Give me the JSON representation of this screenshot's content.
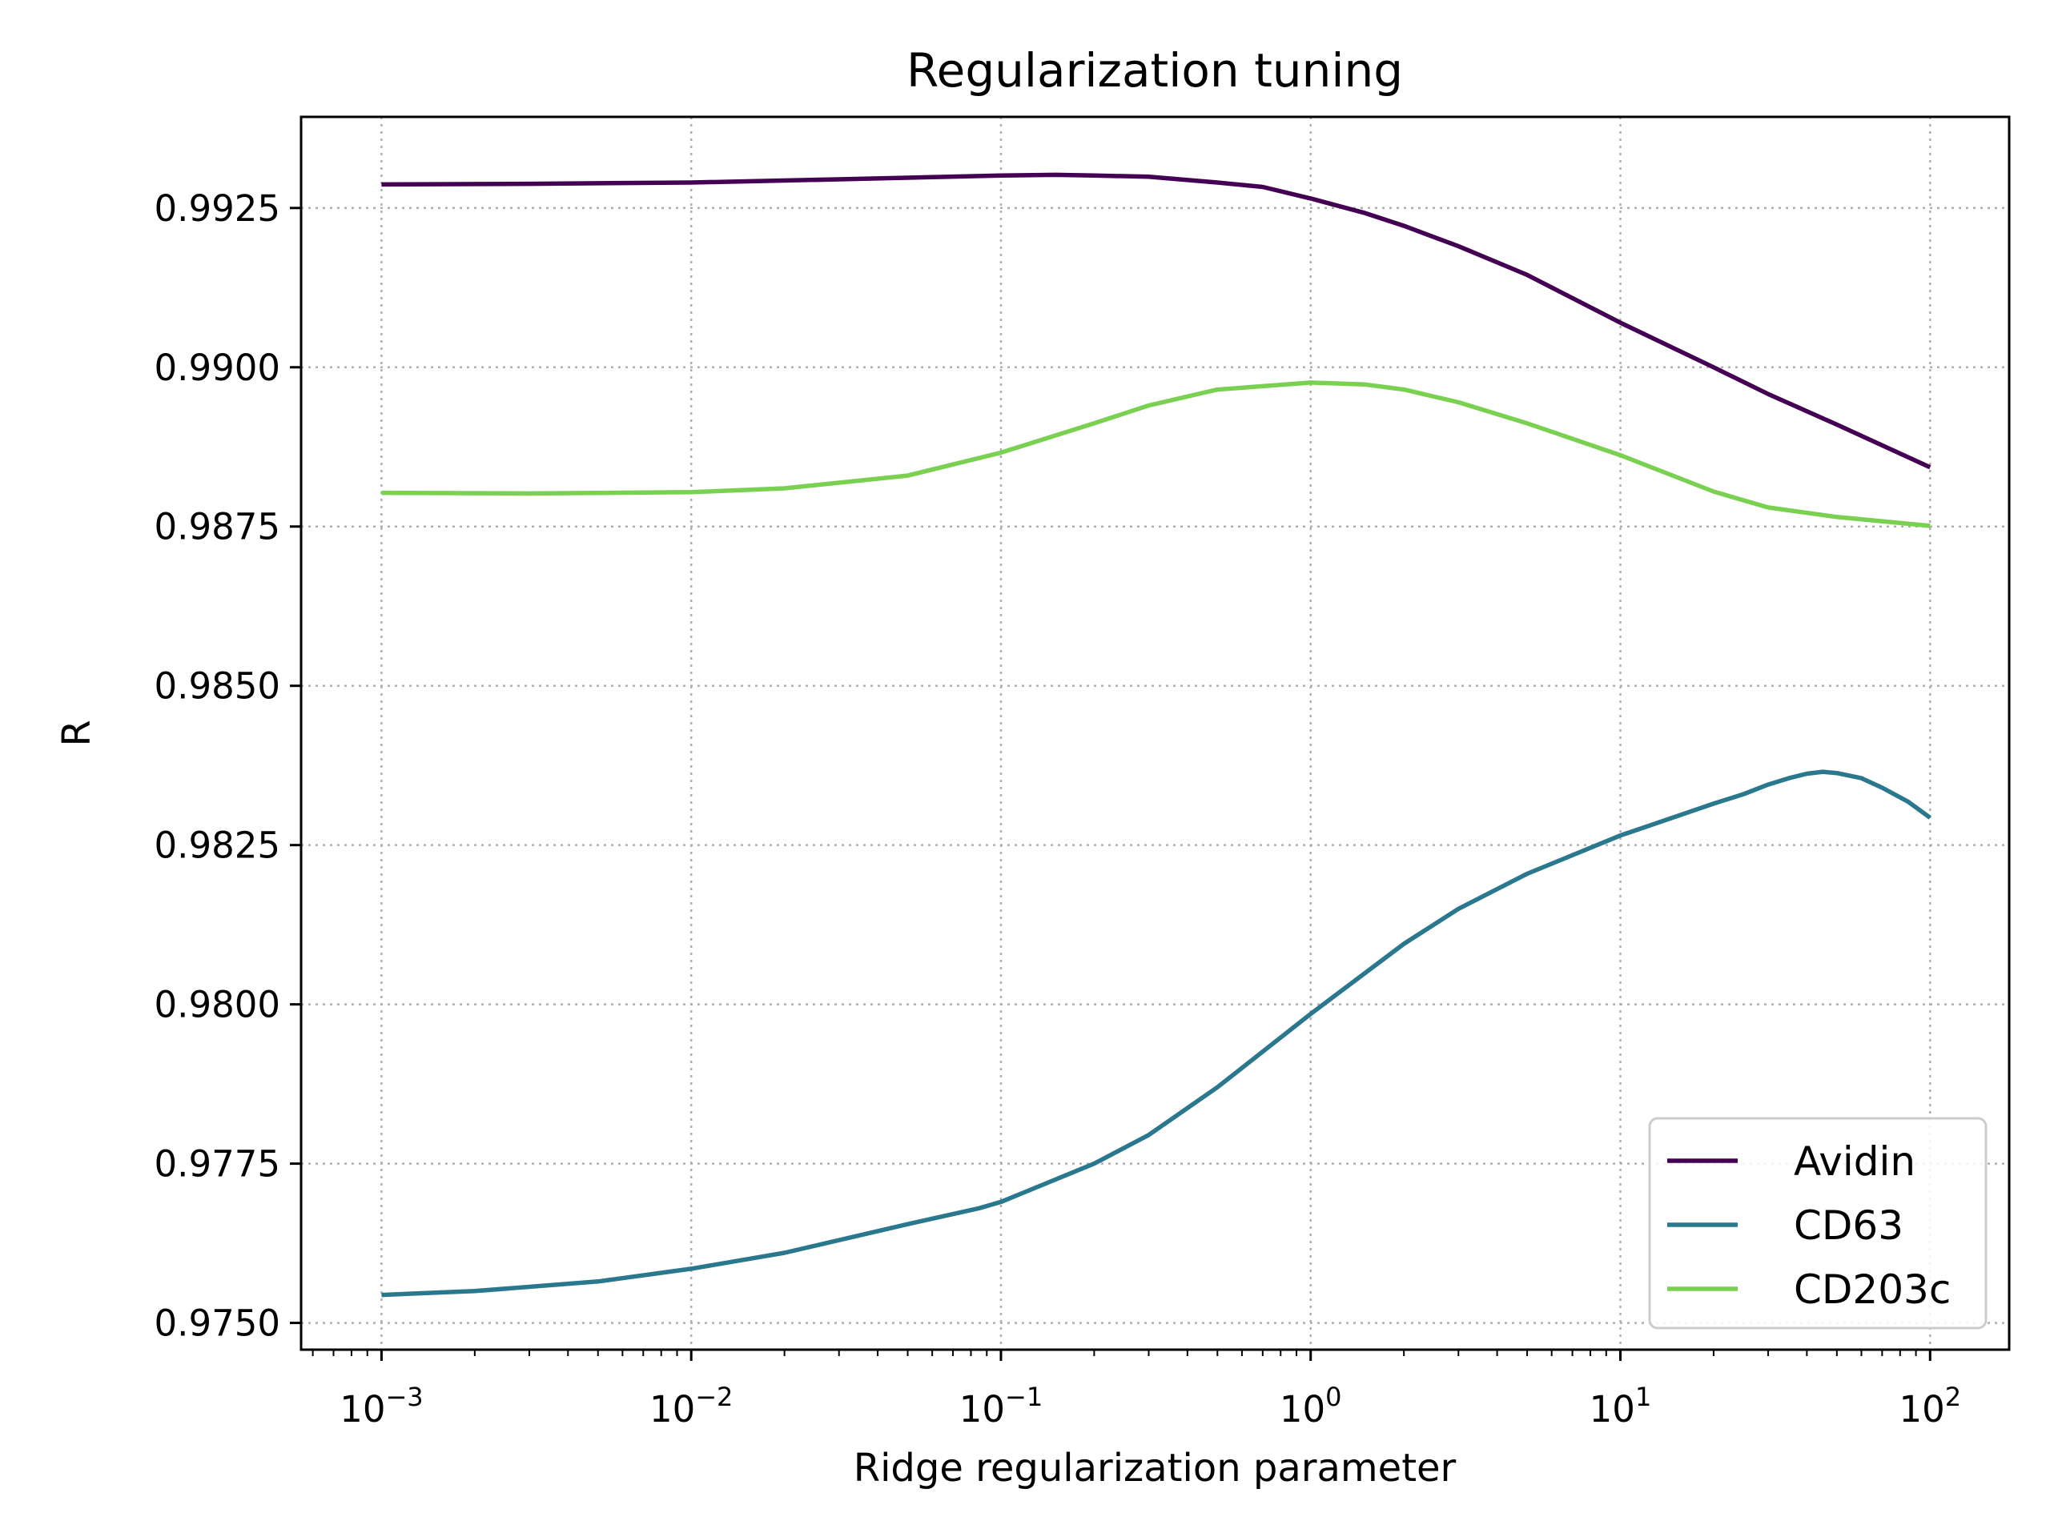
{
  "chart_data": {
    "type": "line",
    "title": "Regularization tuning",
    "xlabel": "Ridge regularization parameter",
    "ylabel": "R",
    "xscale": "log",
    "xlim": [
      0.00055,
      180
    ],
    "ylim": [
      0.97458,
      0.99393
    ],
    "grid": true,
    "legend_position": "bottom-right",
    "x_ticks": [
      {
        "base": "10",
        "exp": "−3",
        "value": 0.001
      },
      {
        "base": "10",
        "exp": "−2",
        "value": 0.01
      },
      {
        "base": "10",
        "exp": "−1",
        "value": 0.1
      },
      {
        "base": "10",
        "exp": "0",
        "value": 1
      },
      {
        "base": "10",
        "exp": "1",
        "value": 10
      },
      {
        "base": "10",
        "exp": "2",
        "value": 100
      }
    ],
    "y_ticks": [
      {
        "label": "0.9750",
        "value": 0.975
      },
      {
        "label": "0.9775",
        "value": 0.9775
      },
      {
        "label": "0.9800",
        "value": 0.98
      },
      {
        "label": "0.9825",
        "value": 0.9825
      },
      {
        "label": "0.9850",
        "value": 0.985
      },
      {
        "label": "0.9875",
        "value": 0.9875
      },
      {
        "label": "0.9900",
        "value": 0.99
      },
      {
        "label": "0.9925",
        "value": 0.9925
      }
    ],
    "series": [
      {
        "name": "Avidin",
        "color": "#440154",
        "x": [
          0.001,
          0.003,
          0.01,
          0.03,
          0.1,
          0.15,
          0.2,
          0.3,
          0.5,
          0.7,
          1,
          1.5,
          2,
          3,
          5,
          10,
          20,
          30,
          50,
          100
        ],
        "y": [
          0.99287,
          0.99288,
          0.9929,
          0.99295,
          0.99301,
          0.99302,
          0.99301,
          0.99299,
          0.9929,
          0.99283,
          0.99265,
          0.99242,
          0.99222,
          0.9919,
          0.99145,
          0.9907,
          0.99,
          0.98958,
          0.9891,
          0.98843
        ]
      },
      {
        "name": "CD63",
        "color": "#2a788e",
        "x": [
          0.001,
          0.002,
          0.005,
          0.01,
          0.02,
          0.05,
          0.085,
          0.1,
          0.2,
          0.3,
          0.5,
          1,
          2,
          3,
          5,
          10,
          20,
          25,
          30,
          35,
          40,
          45,
          50,
          60,
          70,
          85,
          100
        ],
        "y": [
          0.97544,
          0.9755,
          0.97565,
          0.97585,
          0.9761,
          0.97655,
          0.9768,
          0.9769,
          0.9775,
          0.97795,
          0.9787,
          0.97985,
          0.98095,
          0.9815,
          0.98205,
          0.98265,
          0.98315,
          0.9833,
          0.98345,
          0.98355,
          0.98362,
          0.98365,
          0.98363,
          0.98355,
          0.9834,
          0.98318,
          0.98293
        ]
      },
      {
        "name": "CD203c",
        "color": "#7ad151",
        "x": [
          0.001,
          0.003,
          0.01,
          0.02,
          0.05,
          0.1,
          0.2,
          0.3,
          0.5,
          1,
          1.5,
          2,
          3,
          5,
          10,
          20,
          30,
          50,
          100
        ],
        "y": [
          0.98803,
          0.98802,
          0.98804,
          0.9881,
          0.9883,
          0.98866,
          0.98912,
          0.9894,
          0.98965,
          0.98976,
          0.98973,
          0.98965,
          0.98945,
          0.98912,
          0.98862,
          0.98805,
          0.9878,
          0.98765,
          0.98751
        ]
      }
    ]
  }
}
